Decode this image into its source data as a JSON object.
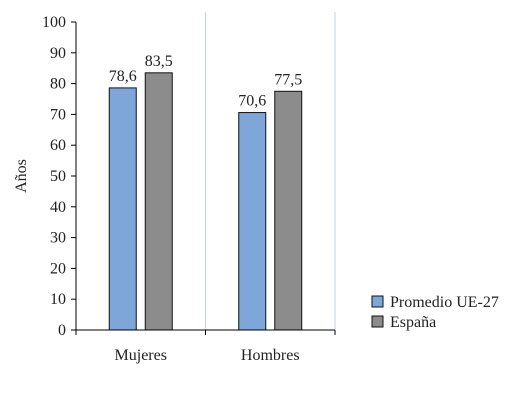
{
  "chart_data": {
    "type": "bar",
    "categories": [
      "Mujeres",
      "Hombres"
    ],
    "series": [
      {
        "name": "Promedio UE-27",
        "values": [
          78.6,
          70.6
        ],
        "labels": [
          "78,6",
          "70,6"
        ],
        "color": "#7ea6d8"
      },
      {
        "name": "España",
        "values": [
          83.5,
          77.5
        ],
        "labels": [
          "83,5",
          "77,5"
        ],
        "color": "#8c8c8c"
      }
    ],
    "ylabel": "Años",
    "xlabel": "",
    "ylim": [
      0,
      100
    ],
    "yticks": [
      "0",
      "10",
      "20",
      "30",
      "40",
      "50",
      "60",
      "70",
      "80",
      "90",
      "100"
    ],
    "legend_position": "right",
    "grid": false,
    "category_separator_color": "#bcd3ec"
  }
}
